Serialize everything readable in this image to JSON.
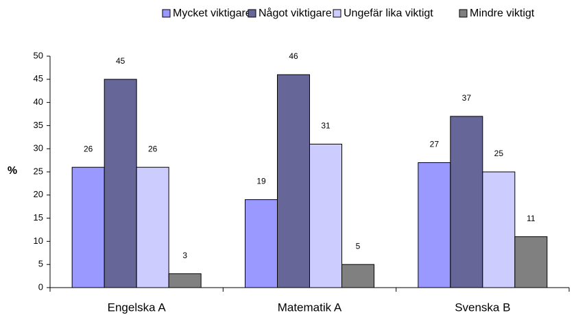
{
  "chart_data": {
    "type": "bar",
    "y_label": "%",
    "categories": [
      "Engelska A",
      "Matematik A",
      "Svenska B"
    ],
    "series": [
      {
        "name": "Mycket viktigare",
        "color": "#9999ff",
        "values": [
          26,
          19,
          27
        ]
      },
      {
        "name": "Något viktigare",
        "color": "#666699",
        "values": [
          45,
          46,
          37
        ]
      },
      {
        "name": "Ungefär lika viktigt",
        "color": "#ccccff",
        "values": [
          26,
          31,
          25
        ]
      },
      {
        "name": "Mindre viktigt",
        "color": "#808080",
        "values": [
          3,
          5,
          11
        ]
      }
    ],
    "ylim": [
      0,
      50
    ],
    "yticks": [
      0,
      5,
      10,
      15,
      20,
      25,
      30,
      35,
      40,
      45,
      50
    ],
    "legend": "top",
    "grid": false
  }
}
